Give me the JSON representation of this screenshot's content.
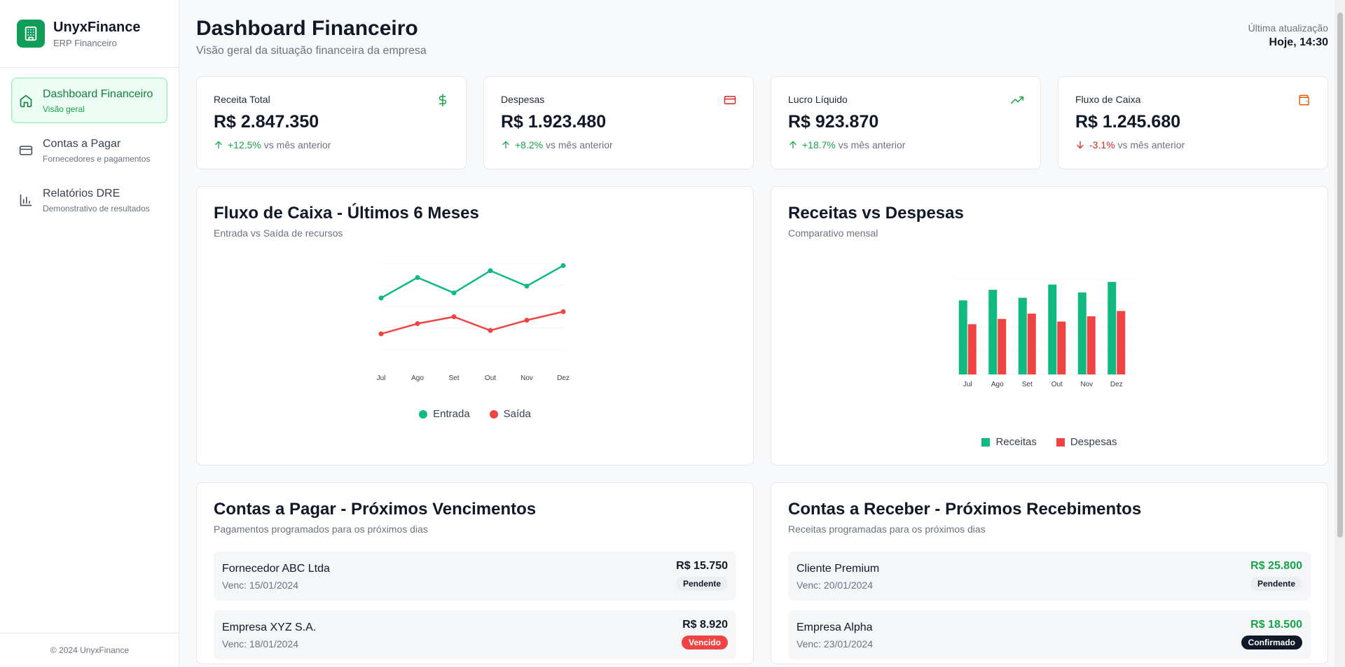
{
  "brand": {
    "name": "UnyxFinance",
    "subtitle": "ERP Financeiro",
    "icon": "building-icon"
  },
  "nav": [
    {
      "label": "Dashboard Financeiro",
      "sub": "Visão geral",
      "icon": "home-icon",
      "active": true
    },
    {
      "label": "Contas a Pagar",
      "sub": "Fornecedores e pagamentos",
      "icon": "credit-card-icon",
      "active": false
    },
    {
      "label": "Relatórios DRE",
      "sub": "Demonstrativo de resultados",
      "icon": "bar-chart-icon",
      "active": false
    }
  ],
  "footer": "© 2024 UnyxFinance",
  "header": {
    "title": "Dashboard Financeiro",
    "subtitle": "Visão geral da situação financeira da empresa",
    "update_label": "Última atualização",
    "update_value": "Hoje, 14:30"
  },
  "kpis": [
    {
      "label": "Receita Total",
      "value": "R$ 2.847.350",
      "delta": "+12.5%",
      "delta_suffix": "vs mês anterior",
      "trend": "up",
      "icon": "dollar-icon",
      "icon_color": "#16a34a"
    },
    {
      "label": "Despesas",
      "value": "R$ 1.923.480",
      "delta": "+8.2%",
      "delta_suffix": "vs mês anterior",
      "trend": "up",
      "icon": "credit-card-icon",
      "icon_color": "#dc2626"
    },
    {
      "label": "Lucro Líquido",
      "value": "R$ 923.870",
      "delta": "+18.7%",
      "delta_suffix": "vs mês anterior",
      "trend": "up",
      "icon": "trending-up-icon",
      "icon_color": "#16a34a"
    },
    {
      "label": "Fluxo de Caixa",
      "value": "R$ 1.245.680",
      "delta": "-3.1%",
      "delta_suffix": "vs mês anterior",
      "trend": "down",
      "icon": "wallet-icon",
      "icon_color": "#ea580c"
    }
  ],
  "cash_flow_card": {
    "title": "Fluxo de Caixa - Últimos 6 Meses",
    "subtitle": "Entrada vs Saída de recursos"
  },
  "revenue_card": {
    "title": "Receitas vs Despesas",
    "subtitle": "Comparativo mensal"
  },
  "chart_data": [
    {
      "type": "line",
      "categories": [
        "Jul",
        "Ago",
        "Set",
        "Out",
        "Nov",
        "Dez"
      ],
      "series": [
        {
          "name": "Entrada",
          "color": "#10b981",
          "values": [
            65,
            77,
            68,
            81,
            72,
            84
          ]
        },
        {
          "name": "Saída",
          "color": "#ef4444",
          "values": [
            44,
            50,
            54,
            46,
            52,
            57
          ]
        }
      ],
      "grid": true,
      "legend": "bottom"
    },
    {
      "type": "bar",
      "categories": [
        "Jul",
        "Ago",
        "Set",
        "Out",
        "Nov",
        "Dez"
      ],
      "series": [
        {
          "name": "Receitas",
          "color": "#10b981",
          "values": [
            280,
            320,
            290,
            340,
            310,
            350
          ]
        },
        {
          "name": "Despesas",
          "color": "#ef4444",
          "values": [
            190,
            210,
            230,
            200,
            220,
            240
          ]
        }
      ],
      "grid": true,
      "legend": "bottom"
    }
  ],
  "payables": {
    "title": "Contas a Pagar - Próximos Vencimentos",
    "subtitle": "Pagamentos programados para os próximos dias",
    "items": [
      {
        "name": "Fornecedor ABC Ltda",
        "date": "Venc: 15/01/2024",
        "amount": "R$ 15.750",
        "status": "Pendente",
        "status_type": "pending"
      },
      {
        "name": "Empresa XYZ S.A.",
        "date": "Venc: 18/01/2024",
        "amount": "R$ 8.920",
        "status": "Vencido",
        "status_type": "overdue"
      }
    ]
  },
  "receivables": {
    "title": "Contas a Receber - Próximos Recebimentos",
    "subtitle": "Receitas programadas para os próximos dias",
    "items": [
      {
        "name": "Cliente Premium",
        "date": "Venc: 20/01/2024",
        "amount": "R$ 25.800",
        "status": "Pendente",
        "status_type": "pending"
      },
      {
        "name": "Empresa Alpha",
        "date": "Venc: 23/01/2024",
        "amount": "R$ 18.500",
        "status": "Confirmado",
        "status_type": "confirmed"
      }
    ]
  }
}
